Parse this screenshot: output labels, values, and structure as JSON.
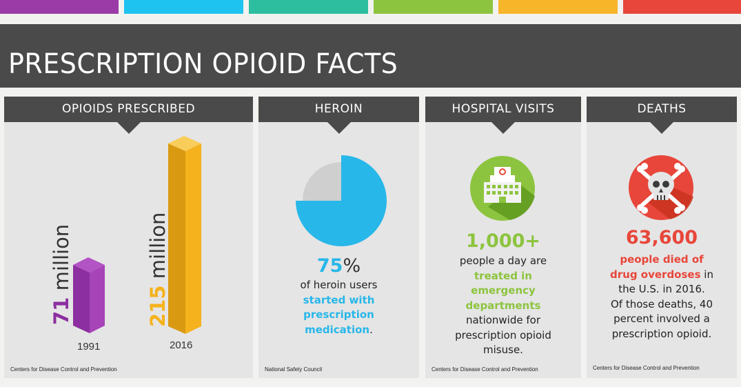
{
  "title": "PRESCRIPTION OPIOID FACTS",
  "colors": {
    "bar": [
      "#9b3ba8",
      "#1ec3f0",
      "#2dbea0",
      "#8dc43f",
      "#f7b52a",
      "#e8463a"
    ],
    "header": "#4a4a4a",
    "panel": "#e5e5e5",
    "purple": "#8c2fa0",
    "orange": "#f5b21d",
    "blue": "#27b7e9",
    "green": "#8dc43f",
    "red": "#e8463a"
  },
  "panels": {
    "opioids": {
      "header": "OPIOIDS PRESCRIBED",
      "bars": [
        {
          "year": "1991",
          "number": "71",
          "unit": " million",
          "value_millions": 71
        },
        {
          "year": "2016",
          "number": "215",
          "unit": " million",
          "value_millions": 215
        }
      ],
      "source": "Centers for Disease Control and Prevention"
    },
    "heroin": {
      "header": "HEROIN",
      "percent_num": "75",
      "percent_sign": "%",
      "percent_value": 75,
      "line1": "of heroin users",
      "hl1": "started with",
      "hl2": "prescription",
      "hl3": "medication",
      "end": ".",
      "source": "National Safety Council"
    },
    "hospital": {
      "header": "HOSPITAL VISITS",
      "icon": "hospital-icon",
      "number": "1,000+",
      "line1": "people a day are",
      "hl1": "treated in",
      "hl2": "emergency",
      "hl3": "departments",
      "line2": "nationwide for",
      "line3": "prescription opioid",
      "line4": "misuse.",
      "source": "Centers for Disease Control and Prevention"
    },
    "deaths": {
      "header": "DEATHS",
      "icon": "skull-crossbones-icon",
      "number": "63,600",
      "hl1": "people died of",
      "hl2": "drug overdoses",
      "line1_end": " in",
      "line2": "the U.S. in 2016.",
      "line3": "Of those deaths, 40",
      "line4": "percent involved a",
      "line5": "prescription opioid.",
      "source": "Centers for Disease Control and Prevention"
    }
  }
}
